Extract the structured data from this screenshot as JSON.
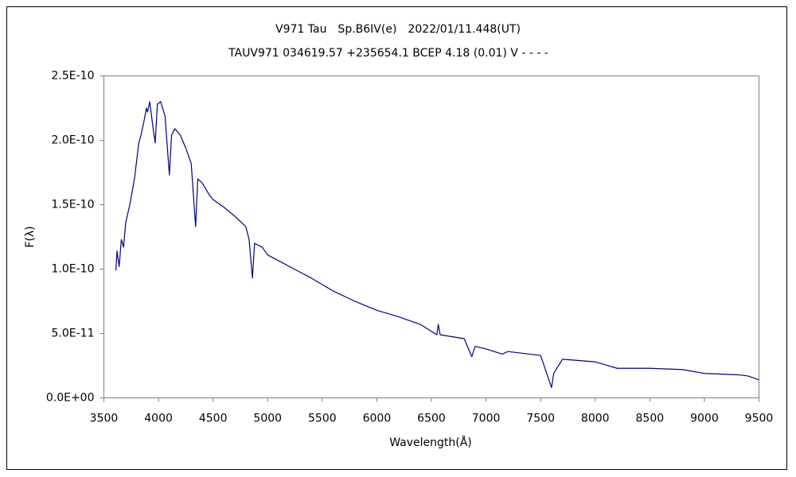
{
  "chart_data": {
    "type": "line",
    "title": "V971 Tau　Sp.B6IV(e)　2022/01/11.448(UT)",
    "subtitle": "TAUV971 034619.57 +235654.1 BCEP 4.18 (0.01) V - - - -",
    "x_label": "Wavelength(Å)",
    "y_label": "F(λ)",
    "x": [
      3610,
      3620,
      3640,
      3660,
      3680,
      3700,
      3740,
      3780,
      3820,
      3840,
      3870,
      3890,
      3900,
      3920,
      3950,
      3970,
      3990,
      4020,
      4060,
      4100,
      4120,
      4150,
      4200,
      4250,
      4300,
      4340,
      4360,
      4400,
      4470,
      4500,
      4600,
      4700,
      4800,
      4830,
      4861,
      4880,
      4950,
      5000,
      5200,
      5400,
      5600,
      5800,
      6000,
      6200,
      6400,
      6550,
      6563,
      6580,
      6800,
      6870,
      6900,
      7000,
      7150,
      7200,
      7500,
      7600,
      7620,
      7700,
      8000,
      8200,
      8500,
      8800,
      9000,
      9300,
      9400,
      9500
    ],
    "series": [
      {
        "name": "F(λ)",
        "color": "#000080",
        "values": [
          9.9e-11,
          1.14e-10,
          1.02e-10,
          1.23e-10,
          1.17e-10,
          1.36e-10,
          1.51e-10,
          1.7e-10,
          1.98e-10,
          2.04e-10,
          2.16e-10,
          2.25e-10,
          2.22e-10,
          2.3e-10,
          2.1e-10,
          1.98e-10,
          2.28e-10,
          2.3e-10,
          2.19e-10,
          1.73e-10,
          2.04e-10,
          2.09e-10,
          2.04e-10,
          1.94e-10,
          1.82e-10,
          1.33e-10,
          1.7e-10,
          1.67e-10,
          1.57e-10,
          1.54e-10,
          1.48e-10,
          1.41e-10,
          1.33e-10,
          1.23e-10,
          9.3e-11,
          1.2e-10,
          1.17e-10,
          1.11e-10,
          1.02e-10,
          9.3e-11,
          8.3e-11,
          7.5e-11,
          6.8e-11,
          6.3e-11,
          5.7e-11,
          4.9e-11,
          5.7e-11,
          4.9e-11,
          4.6e-11,
          3.2e-11,
          4e-11,
          3.8e-11,
          3.4e-11,
          3.6e-11,
          3.3e-11,
          8e-12,
          1.9e-11,
          3e-11,
          2.8e-11,
          2.3e-11,
          2.3e-11,
          2.2e-11,
          1.9e-11,
          1.8e-11,
          1.7e-11,
          1.4e-11
        ]
      }
    ],
    "xlim": [
      3500,
      9500
    ],
    "xticks": [
      3500,
      4000,
      4500,
      5000,
      5500,
      6000,
      6500,
      7000,
      7500,
      8000,
      8500,
      9000,
      9500
    ],
    "ylim": [
      0,
      2.5e-10
    ],
    "yticks": [
      {
        "value": 0,
        "label": "0.0E+00"
      },
      {
        "value": 5e-11,
        "label": "5.0E-11"
      },
      {
        "value": 1e-10,
        "label": "1.0E-10"
      },
      {
        "value": 1.5e-10,
        "label": "1.5E-10"
      },
      {
        "value": 2e-10,
        "label": "2.0E-10"
      },
      {
        "value": 2.5e-10,
        "label": "2.5E-10"
      }
    ],
    "grid": false
  }
}
